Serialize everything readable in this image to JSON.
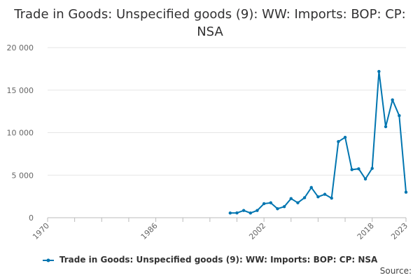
{
  "chart_data": {
    "type": "line",
    "title": "Trade in Goods: Unspecified goods (9): WW: Imports: BOP: CP: NSA",
    "xlabel": "",
    "ylabel": "",
    "xlim": [
      1970,
      2023
    ],
    "ylim": [
      0,
      20000
    ],
    "x_ticks": [
      1970,
      1974,
      1978,
      1982,
      1986,
      1990,
      1994,
      1998,
      2002,
      2006,
      2010,
      2014,
      2018,
      2023
    ],
    "x_tick_labels": [
      "1970",
      "",
      "",
      "",
      "1986",
      "",
      "",
      "",
      "2002",
      "",
      "",
      "",
      "2018",
      "2023"
    ],
    "y_ticks": [
      0,
      5000,
      10000,
      15000,
      20000
    ],
    "y_tick_labels": [
      "0",
      "5 000",
      "10 000",
      "15 000",
      "20 000"
    ],
    "grid": "horizontal",
    "legend_position": "bottom",
    "series": [
      {
        "name": "Trade in Goods: Unspecified goods (9): WW: Imports: BOP: CP: NSA",
        "color": "#0075b0",
        "x": [
          1997,
          1998,
          1999,
          2000,
          2001,
          2002,
          2003,
          2004,
          2005,
          2006,
          2007,
          2008,
          2009,
          2010,
          2011,
          2012,
          2013,
          2014,
          2015,
          2016,
          2017,
          2018,
          2019,
          2020,
          2021,
          2022,
          2023
        ],
        "values": [
          550,
          560,
          850,
          550,
          850,
          1650,
          1750,
          1050,
          1300,
          2250,
          1750,
          2350,
          3550,
          2450,
          2750,
          2300,
          8950,
          9450,
          5650,
          5750,
          4550,
          5800,
          17200,
          10700,
          13850,
          12000,
          3000
        ]
      }
    ],
    "source_label": "Source:"
  }
}
